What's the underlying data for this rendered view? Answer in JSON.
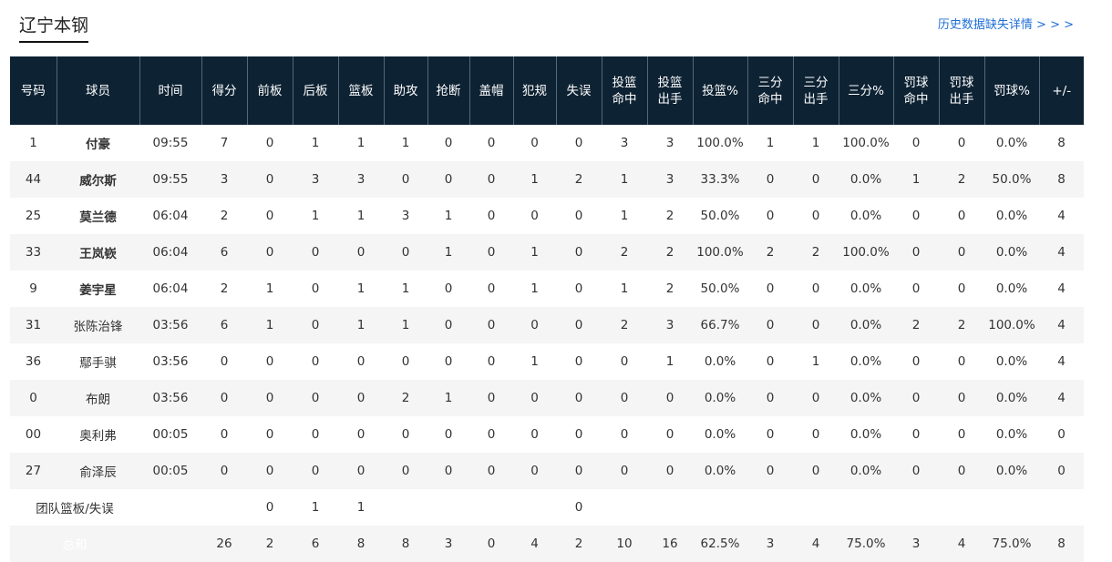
{
  "team_name": "辽宁本钢",
  "history_link": "历史数据缺失详情 > > >",
  "headers": [
    "号码",
    "球员",
    "时间",
    "得分",
    "前板",
    "后板",
    "篮板",
    "助攻",
    "抢断",
    "盖帽",
    "犯规",
    "失误",
    "投篮\n命中",
    "投篮\n出手",
    "投篮%",
    "三分\n命中",
    "三分\n出手",
    "三分%",
    "罚球\n命中",
    "罚球\n出手",
    "罚球%",
    "+/-"
  ],
  "players": [
    {
      "num": "1",
      "name": "付豪",
      "starter": true,
      "cells": [
        "09:55",
        "7",
        "0",
        "1",
        "1",
        "1",
        "0",
        "0",
        "0",
        "0",
        "3",
        "3",
        "100.0%",
        "1",
        "1",
        "100.0%",
        "0",
        "0",
        "0.0%",
        "8"
      ]
    },
    {
      "num": "44",
      "name": "威尔斯",
      "starter": true,
      "cells": [
        "09:55",
        "3",
        "0",
        "3",
        "3",
        "0",
        "0",
        "0",
        "1",
        "2",
        "1",
        "3",
        "33.3%",
        "0",
        "0",
        "0.0%",
        "1",
        "2",
        "50.0%",
        "8"
      ]
    },
    {
      "num": "25",
      "name": "莫兰德",
      "starter": true,
      "cells": [
        "06:04",
        "2",
        "0",
        "1",
        "1",
        "3",
        "1",
        "0",
        "0",
        "0",
        "1",
        "2",
        "50.0%",
        "0",
        "0",
        "0.0%",
        "0",
        "0",
        "0.0%",
        "4"
      ]
    },
    {
      "num": "33",
      "name": "王岚嵚",
      "starter": true,
      "cells": [
        "06:04",
        "6",
        "0",
        "0",
        "0",
        "0",
        "1",
        "0",
        "1",
        "0",
        "2",
        "2",
        "100.0%",
        "2",
        "2",
        "100.0%",
        "0",
        "0",
        "0.0%",
        "4"
      ]
    },
    {
      "num": "9",
      "name": "姜宇星",
      "starter": true,
      "cells": [
        "06:04",
        "2",
        "1",
        "0",
        "1",
        "1",
        "0",
        "0",
        "1",
        "0",
        "1",
        "2",
        "50.0%",
        "0",
        "0",
        "0.0%",
        "0",
        "0",
        "0.0%",
        "4"
      ]
    },
    {
      "num": "31",
      "name": "张陈治锋",
      "starter": false,
      "cells": [
        "03:56",
        "6",
        "1",
        "0",
        "1",
        "1",
        "0",
        "0",
        "0",
        "0",
        "2",
        "3",
        "66.7%",
        "0",
        "0",
        "0.0%",
        "2",
        "2",
        "100.0%",
        "4"
      ]
    },
    {
      "num": "36",
      "name": "鄢手骐",
      "starter": false,
      "cells": [
        "03:56",
        "0",
        "0",
        "0",
        "0",
        "0",
        "0",
        "0",
        "1",
        "0",
        "0",
        "1",
        "0.0%",
        "0",
        "1",
        "0.0%",
        "0",
        "0",
        "0.0%",
        "4"
      ]
    },
    {
      "num": "0",
      "name": "布朗",
      "starter": false,
      "cells": [
        "03:56",
        "0",
        "0",
        "0",
        "0",
        "2",
        "1",
        "0",
        "0",
        "0",
        "0",
        "0",
        "0.0%",
        "0",
        "0",
        "0.0%",
        "0",
        "0",
        "0.0%",
        "4"
      ]
    },
    {
      "num": "00",
      "name": "奥利弗",
      "starter": false,
      "cells": [
        "00:05",
        "0",
        "0",
        "0",
        "0",
        "0",
        "0",
        "0",
        "0",
        "0",
        "0",
        "0",
        "0.0%",
        "0",
        "0",
        "0.0%",
        "0",
        "0",
        "0.0%",
        "0"
      ]
    },
    {
      "num": "27",
      "name": "俞泽辰",
      "starter": false,
      "cells": [
        "00:05",
        "0",
        "0",
        "0",
        "0",
        "0",
        "0",
        "0",
        "0",
        "0",
        "0",
        "0",
        "0.0%",
        "0",
        "0",
        "0.0%",
        "0",
        "0",
        "0.0%",
        "0"
      ]
    }
  ],
  "team_row": {
    "label": "团队篮板/失误",
    "cells": [
      "",
      "",
      "0",
      "1",
      "1",
      "",
      "",
      "",
      "",
      "0",
      "",
      "",
      "",
      "",
      "",
      "",
      "",
      "",
      "",
      ""
    ]
  },
  "total_row": {
    "label": "总和",
    "cells": [
      "",
      "26",
      "2",
      "6",
      "8",
      "8",
      "3",
      "0",
      "4",
      "2",
      "10",
      "16",
      "62.5%",
      "3",
      "4",
      "75.0%",
      "3",
      "4",
      "75.0%",
      "8"
    ]
  }
}
